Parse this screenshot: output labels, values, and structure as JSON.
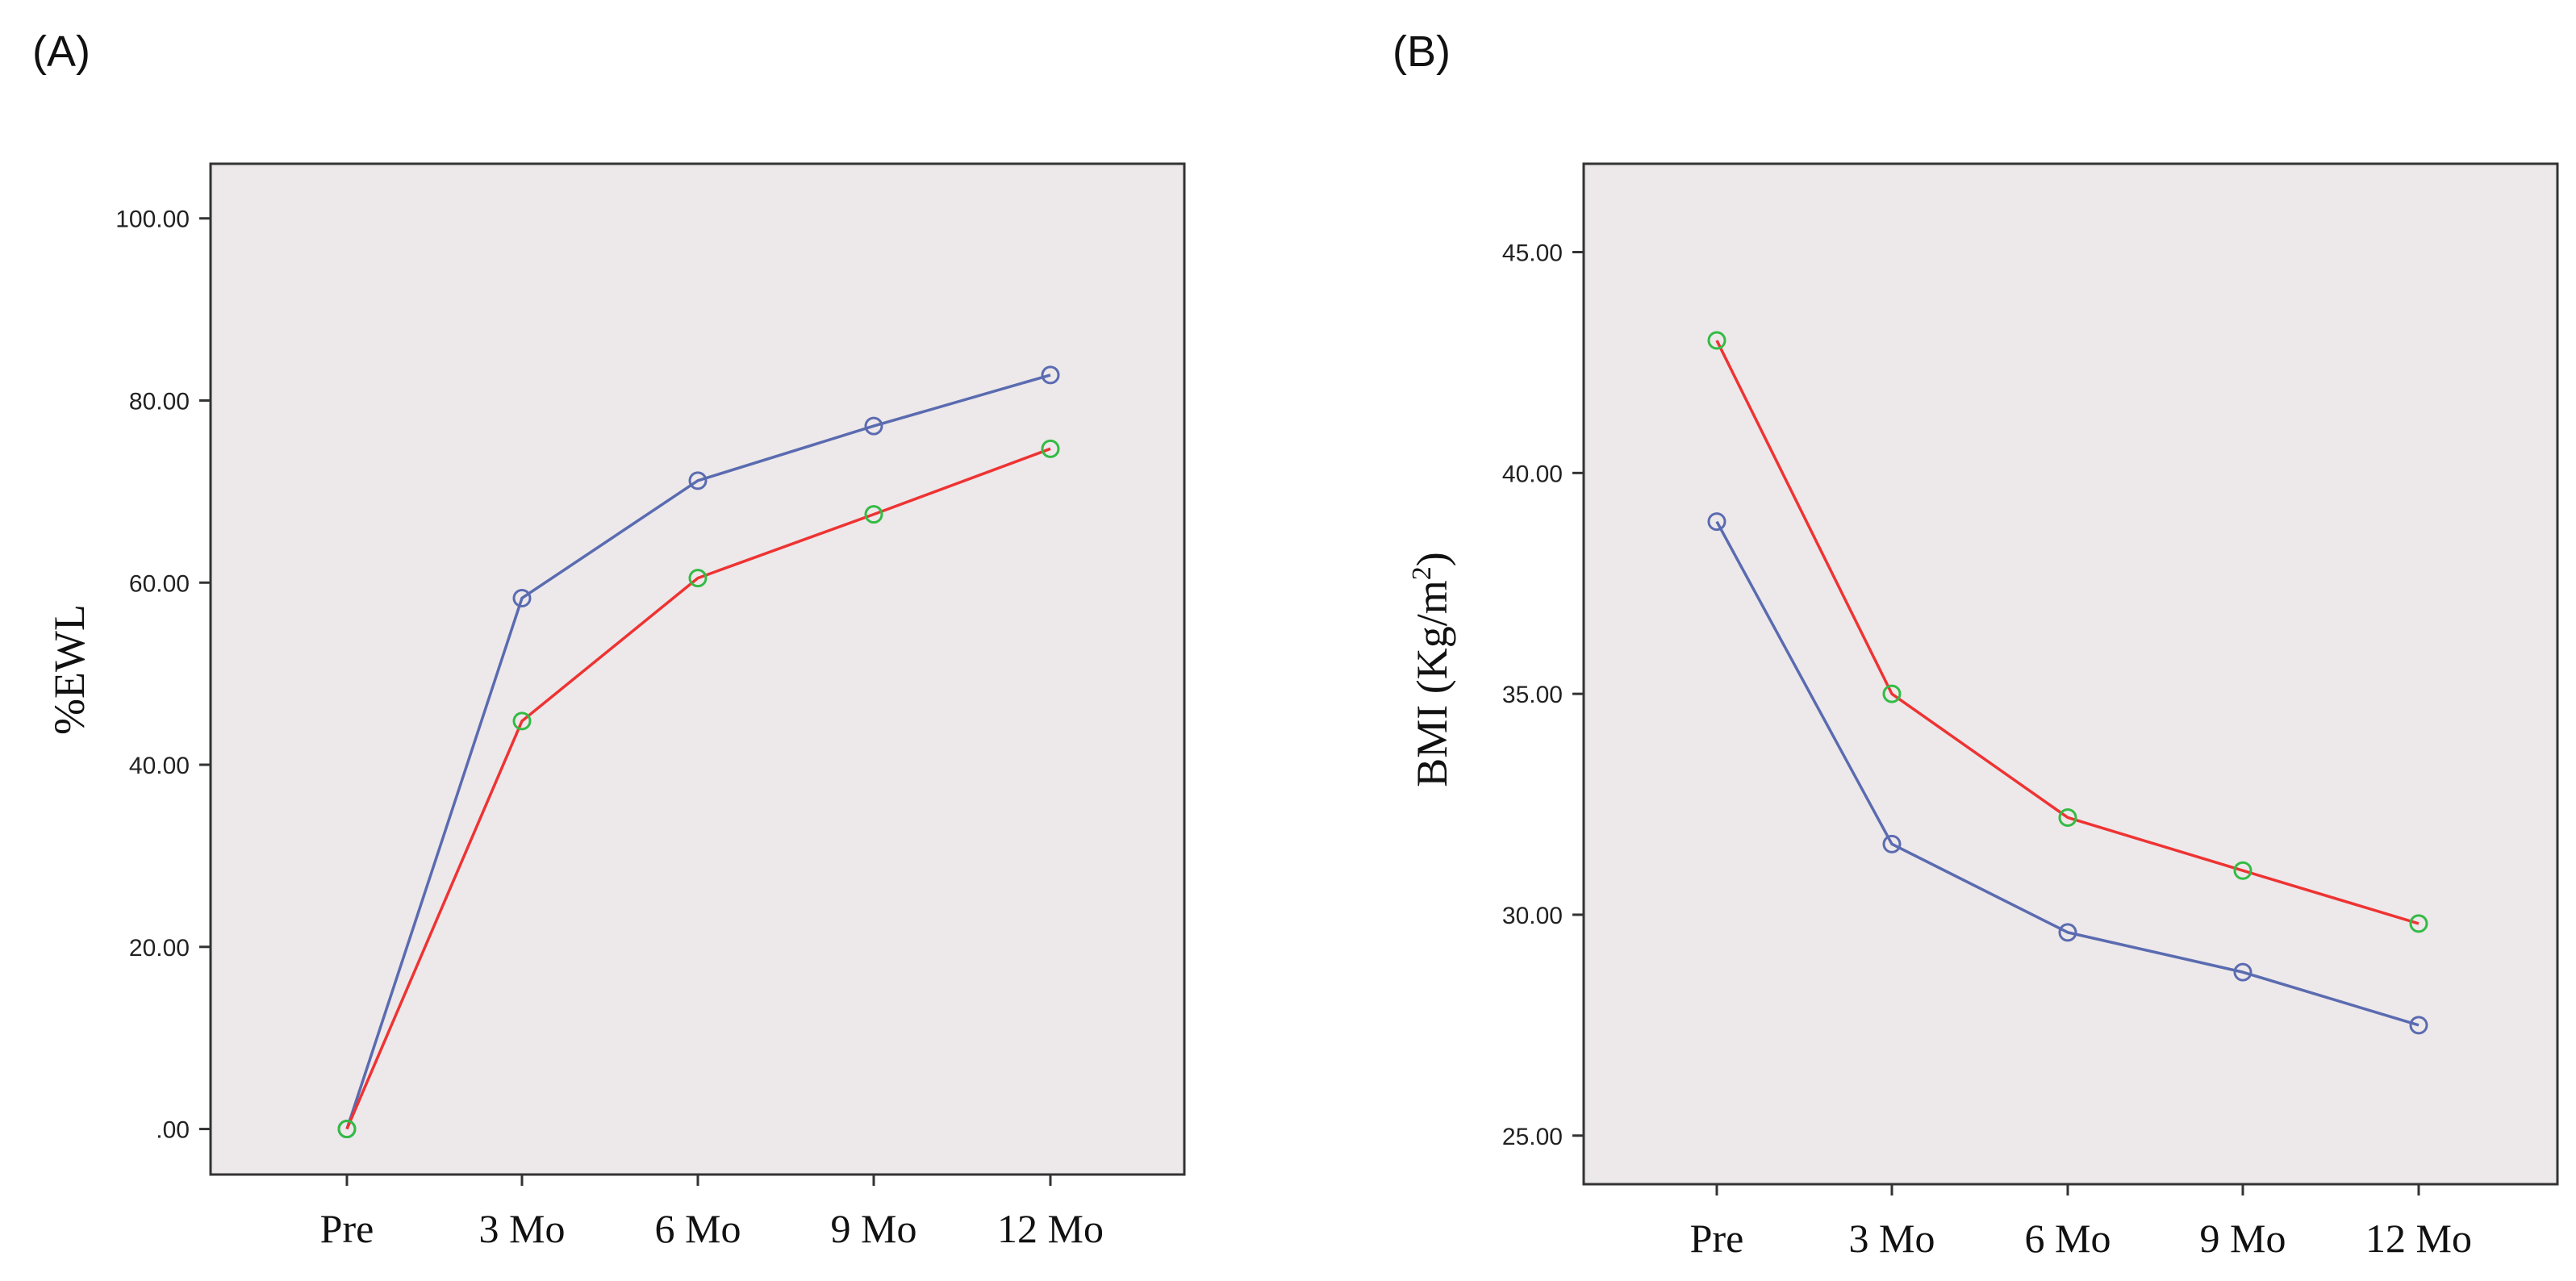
{
  "colors": {
    "plot_background": "#ede8ea",
    "frame": "#333333",
    "series_blue": "#5a6bb0",
    "series_red": "#ee3333",
    "marker_green": "#33bb44"
  },
  "chart_data": [
    {
      "panel_label": "(A)",
      "type": "line",
      "title": "",
      "xlabel": "",
      "ylabel": "%EWL",
      "categories": [
        "Pre",
        "3 Mo",
        "6 Mo",
        "9 Mo",
        "12 Mo"
      ],
      "ylim": [
        -5,
        106
      ],
      "yticks": [
        0,
        20,
        40,
        60,
        80,
        100
      ],
      "ytick_labels": [
        ".00",
        "20.00",
        "40.00",
        "60.00",
        "80.00",
        "100.00"
      ],
      "grid": false,
      "series": [
        {
          "name": "blue",
          "color": "#5a6bb0",
          "marker_color": "#5a6bb0",
          "values": [
            0,
            58.3,
            71.2,
            77.2,
            82.8
          ]
        },
        {
          "name": "red",
          "color": "#ee3333",
          "marker_color": "#33bb44",
          "values": [
            0,
            44.8,
            60.5,
            67.5,
            74.7
          ]
        }
      ]
    },
    {
      "panel_label": "(B)",
      "type": "line",
      "title": "",
      "xlabel": "",
      "ylabel": "BMI (Kg/m2)",
      "ylabel_parts": {
        "main": "BMI (Kg/m",
        "superscript": "2",
        "close": ")"
      },
      "categories": [
        "Pre",
        "3 Mo",
        "6 Mo",
        "9 Mo",
        "12 Mo"
      ],
      "ylim": [
        23.9,
        47.0
      ],
      "yticks": [
        25,
        30,
        35,
        40,
        45
      ],
      "ytick_labels": [
        "25.00",
        "30.00",
        "35.00",
        "40.00",
        "45.00"
      ],
      "grid": false,
      "series": [
        {
          "name": "red",
          "color": "#ee3333",
          "marker_color": "#33bb44",
          "values": [
            43.0,
            35.0,
            32.2,
            31.0,
            29.8
          ]
        },
        {
          "name": "blue",
          "color": "#5a6bb0",
          "marker_color": "#5a6bb0",
          "values": [
            38.9,
            31.6,
            29.6,
            28.7,
            27.5
          ]
        }
      ]
    }
  ]
}
